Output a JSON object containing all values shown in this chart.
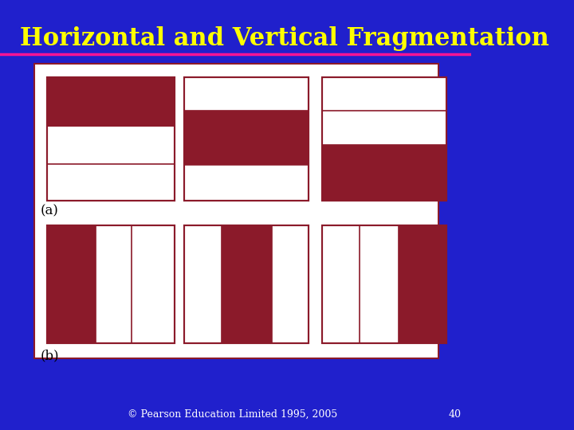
{
  "title": "Horizontal and Vertical Fragmentation",
  "title_color": "#FFFF00",
  "title_fontsize": 22,
  "bg_color": "#2020CC",
  "panel_bg": "#FFFFFF",
  "dark_red": "#8B1A2A",
  "border_color": "#8B1A2A",
  "footer_text": "© Pearson Education Limited 1995, 2005",
  "page_number": "40",
  "label_a": "(a)",
  "label_b": "(b)"
}
